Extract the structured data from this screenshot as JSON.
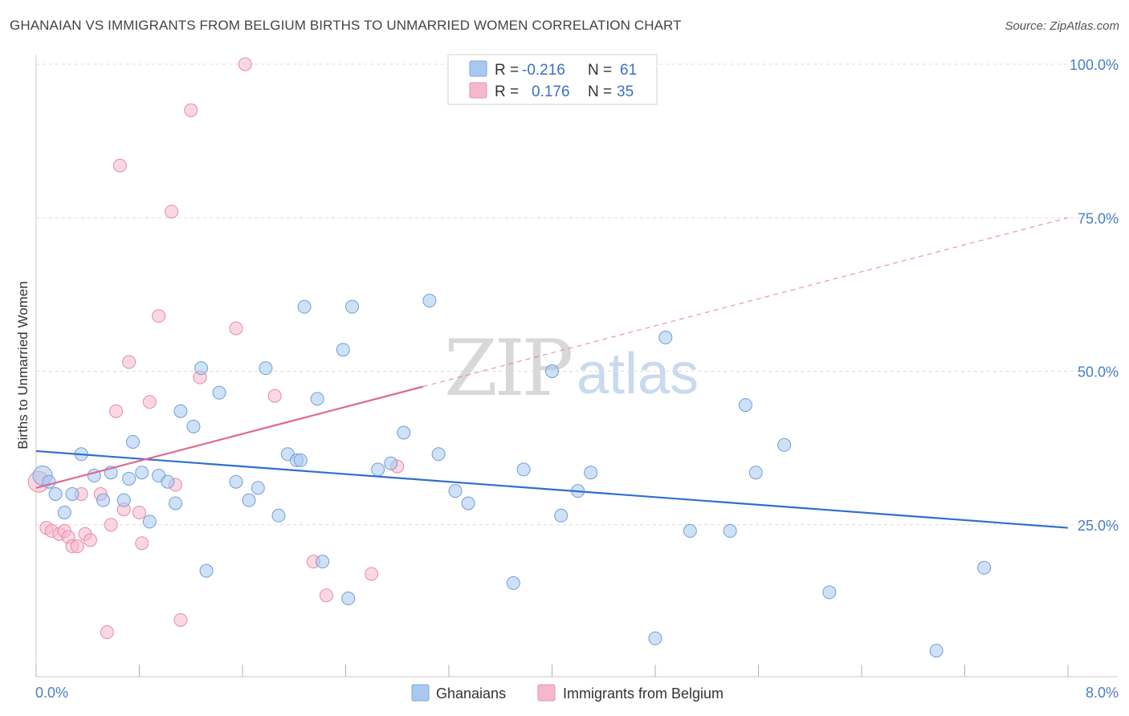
{
  "header": {
    "title": "GHANAIAN VS IMMIGRANTS FROM BELGIUM BIRTHS TO UNMARRIED WOMEN CORRELATION CHART",
    "source": "Source: ZipAtlas.com"
  },
  "watermark": {
    "zip": "ZIP",
    "atlas": "atlas"
  },
  "legend": {
    "items": [
      {
        "r_label": "R =",
        "r_value": "-0.216",
        "n_label": "N =",
        "n_value": "61",
        "color": "#a8c8f0"
      },
      {
        "r_label": "R =",
        "r_value": "0.176",
        "n_label": "N =",
        "n_value": "35",
        "color": "#f5b8cb"
      }
    ]
  },
  "colors": {
    "blue_fill": "#a8c8f0",
    "blue_stroke": "#6f9fd8",
    "blue_line": "#2f6fce",
    "pink_fill": "#f5b8cb",
    "pink_stroke": "#e88aa8",
    "pink_line": "#e06a92",
    "tick_text": "#4a7ec8",
    "grid": "#dcdcdc"
  },
  "chart_data": {
    "type": "scatter",
    "title": "GHANAIAN VS IMMIGRANTS FROM BELGIUM BIRTHS TO UNMARRIED WOMEN CORRELATION CHART",
    "xlabel": "",
    "ylabel": "Births to Unmarried Women",
    "xlim": [
      0,
      8
    ],
    "ylim": [
      0,
      100
    ],
    "x_tick_labels": [
      "0.0%",
      "8.0%"
    ],
    "y_ticks": [
      25,
      50,
      75,
      100
    ],
    "y_tick_labels": [
      "25.0%",
      "50.0%",
      "75.0%",
      "100.0%"
    ],
    "grid": true,
    "series": [
      {
        "name": "Ghanaians",
        "color": "#a8c8f0",
        "trend": {
          "x0": 0.0,
          "y0": 37.0,
          "x1": 8.0,
          "y1": 24.5
        },
        "points": [
          [
            0.05,
            33.0
          ],
          [
            0.1,
            32.0
          ],
          [
            0.15,
            30.0
          ],
          [
            0.22,
            27.0
          ],
          [
            0.28,
            30.0
          ],
          [
            0.35,
            36.5
          ],
          [
            0.45,
            33.0
          ],
          [
            0.52,
            29.0
          ],
          [
            0.58,
            33.5
          ],
          [
            0.68,
            29.0
          ],
          [
            0.72,
            32.5
          ],
          [
            0.75,
            38.5
          ],
          [
            0.82,
            33.5
          ],
          [
            0.88,
            25.5
          ],
          [
            0.95,
            33.0
          ],
          [
            1.02,
            32.0
          ],
          [
            1.08,
            28.5
          ],
          [
            1.12,
            43.5
          ],
          [
            1.22,
            41.0
          ],
          [
            1.28,
            50.5
          ],
          [
            1.32,
            17.5
          ],
          [
            1.42,
            46.5
          ],
          [
            1.55,
            32.0
          ],
          [
            1.65,
            29.0
          ],
          [
            1.72,
            31.0
          ],
          [
            1.78,
            50.5
          ],
          [
            1.88,
            26.5
          ],
          [
            1.95,
            36.5
          ],
          [
            2.02,
            35.5
          ],
          [
            2.05,
            35.5
          ],
          [
            2.08,
            60.5
          ],
          [
            2.18,
            45.5
          ],
          [
            2.22,
            19.0
          ],
          [
            2.38,
            53.5
          ],
          [
            2.42,
            13.0
          ],
          [
            2.45,
            60.5
          ],
          [
            2.65,
            34.0
          ],
          [
            2.75,
            35.0
          ],
          [
            2.85,
            40.0
          ],
          [
            3.05,
            61.5
          ],
          [
            3.12,
            36.5
          ],
          [
            3.25,
            30.5
          ],
          [
            3.35,
            28.5
          ],
          [
            3.7,
            15.5
          ],
          [
            3.78,
            34.0
          ],
          [
            4.0,
            50.0
          ],
          [
            4.07,
            26.5
          ],
          [
            4.2,
            30.5
          ],
          [
            4.3,
            33.5
          ],
          [
            4.8,
            6.5
          ],
          [
            4.88,
            55.5
          ],
          [
            5.07,
            24.0
          ],
          [
            5.38,
            24.0
          ],
          [
            5.5,
            44.5
          ],
          [
            5.58,
            33.5
          ],
          [
            5.8,
            38.0
          ],
          [
            6.15,
            14.0
          ],
          [
            6.98,
            4.5
          ],
          [
            7.35,
            18.0
          ]
        ]
      },
      {
        "name": "Immigrants from Belgium",
        "color": "#f5b8cb",
        "trend": {
          "x0": 0.0,
          "y0": 31.0,
          "x1": 3.0,
          "y1": 47.5,
          "dash_x1": 8.0,
          "dash_y1": 75.0
        },
        "points": [
          [
            0.02,
            32.0
          ],
          [
            0.08,
            24.5
          ],
          [
            0.12,
            24.0
          ],
          [
            0.18,
            23.5
          ],
          [
            0.22,
            24.0
          ],
          [
            0.25,
            23.0
          ],
          [
            0.28,
            21.5
          ],
          [
            0.32,
            21.5
          ],
          [
            0.35,
            30.0
          ],
          [
            0.38,
            23.5
          ],
          [
            0.42,
            22.5
          ],
          [
            0.5,
            30.0
          ],
          [
            0.55,
            7.5
          ],
          [
            0.58,
            25.0
          ],
          [
            0.62,
            43.5
          ],
          [
            0.65,
            83.5
          ],
          [
            0.68,
            27.5
          ],
          [
            0.72,
            51.5
          ],
          [
            0.8,
            27.0
          ],
          [
            0.82,
            22.0
          ],
          [
            0.88,
            45.0
          ],
          [
            0.95,
            59.0
          ],
          [
            1.05,
            76.0
          ],
          [
            1.08,
            31.5
          ],
          [
            1.12,
            9.5
          ],
          [
            1.2,
            92.5
          ],
          [
            1.27,
            49.0
          ],
          [
            1.55,
            57.0
          ],
          [
            1.62,
            100.0
          ],
          [
            1.85,
            46.0
          ],
          [
            2.15,
            19.0
          ],
          [
            2.25,
            13.5
          ],
          [
            2.6,
            17.0
          ],
          [
            2.8,
            34.5
          ]
        ]
      }
    ]
  },
  "bottom_legend": {
    "ghanaians": "Ghanaians",
    "belgium": "Immigrants from Belgium"
  }
}
